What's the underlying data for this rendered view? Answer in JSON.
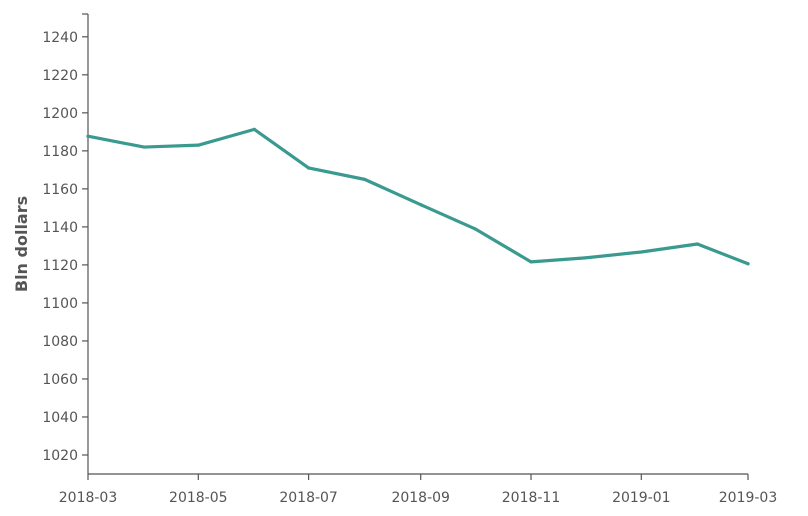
{
  "chart_data": {
    "type": "line",
    "ylabel": "Bln dollars",
    "xlabel": "",
    "ylim": [
      1010,
      1252
    ],
    "y_ticks": [
      1020,
      1040,
      1060,
      1080,
      1100,
      1120,
      1140,
      1160,
      1180,
      1200,
      1220,
      1240
    ],
    "x_ticks": [
      "2018-03",
      "2018-05",
      "2018-07",
      "2018-09",
      "2018-11",
      "2019-01",
      "2019-03"
    ],
    "x_range": [
      "2018-03-01",
      "2019-03-01"
    ],
    "grid": false,
    "line_color": "#3a9a8f",
    "series": [
      {
        "x": [
          "2018-03-01",
          "2018-04-01",
          "2018-05-01",
          "2018-06-01",
          "2018-07-01",
          "2018-08-01",
          "2018-09-01",
          "2018-10-01",
          "2018-11-01",
          "2018-12-01",
          "2019-01-01",
          "2019-02-01",
          "2019-03-01"
        ],
        "values": [
          1187.7,
          1182,
          1183,
          1191.3,
          1171,
          1165,
          1151.7,
          1139,
          1121.6,
          1123.7,
          1126.8,
          1131,
          1120.6
        ]
      }
    ]
  }
}
